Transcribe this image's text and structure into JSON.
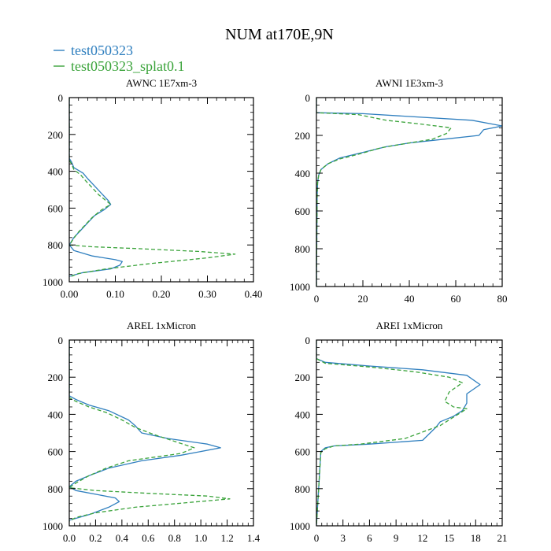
{
  "figure": {
    "title": "NUM at170E,9N",
    "legend": [
      {
        "label": "test050323",
        "color": "#2f7fbf",
        "dash": "solid"
      },
      {
        "label": "test050323_splat0.1",
        "color": "#3aa33a",
        "dash": "dashed"
      }
    ]
  },
  "chart_data": [
    {
      "type": "line",
      "title": "AWNC  1E7xm-3",
      "xlim": [
        0,
        0.4
      ],
      "ylim": [
        1000,
        0
      ],
      "xticks": [
        "0.00",
        "0.10",
        "0.20",
        "0.30",
        "0.40"
      ],
      "xtick_values": [
        0,
        0.1,
        0.2,
        0.3,
        0.4
      ],
      "yticks": [
        "0",
        "200",
        "400",
        "600",
        "800",
        "1000"
      ],
      "ytick_values": [
        0,
        200,
        400,
        600,
        800,
        1000
      ],
      "series": [
        {
          "name": "test050323",
          "x": [
            0,
            0,
            0.005,
            0.01,
            0.03,
            0.04,
            0.055,
            0.07,
            0.085,
            0.09,
            0.075,
            0.055,
            0.04,
            0.025,
            0.01,
            0.005,
            0,
            0.01,
            0.05,
            0.1,
            0.115,
            0.11,
            0.09,
            0.03,
            0
          ],
          "y": [
            0,
            330,
            350,
            380,
            410,
            440,
            480,
            520,
            560,
            580,
            610,
            640,
            680,
            720,
            760,
            780,
            800,
            830,
            860,
            880,
            890,
            910,
            930,
            950,
            970
          ]
        },
        {
          "name": "test050323_splat0.1",
          "x": [
            0,
            0,
            0.005,
            0.01,
            0.025,
            0.035,
            0.05,
            0.065,
            0.08,
            0.09,
            0.07,
            0.05,
            0.035,
            0.02,
            0.008,
            0.003,
            0,
            0.05,
            0.15,
            0.28,
            0.36,
            0.3,
            0.18,
            0.08,
            0.02,
            0
          ],
          "y": [
            0,
            340,
            360,
            390,
            420,
            450,
            490,
            530,
            560,
            580,
            610,
            650,
            690,
            730,
            770,
            790,
            800,
            810,
            820,
            835,
            850,
            870,
            900,
            930,
            955,
            975
          ]
        }
      ]
    },
    {
      "type": "line",
      "title": "AWNI  1E3xm-3",
      "xlim": [
        0,
        80
      ],
      "ylim": [
        1000,
        0
      ],
      "xticks": [
        "0",
        "20",
        "40",
        "60",
        "80"
      ],
      "xtick_values": [
        0,
        20,
        40,
        60,
        80
      ],
      "yticks": [
        "0",
        "200",
        "400",
        "600",
        "800",
        "1000"
      ],
      "ytick_values": [
        0,
        200,
        400,
        600,
        800,
        1000
      ],
      "series": [
        {
          "name": "test050323",
          "x": [
            0,
            0,
            20,
            67,
            80,
            72,
            70,
            55,
            40,
            30,
            20,
            10,
            5,
            2,
            1,
            0.5,
            0.3,
            0
          ],
          "y": [
            0,
            80,
            85,
            120,
            150,
            170,
            200,
            220,
            240,
            260,
            290,
            320,
            350,
            380,
            410,
            450,
            520,
            1000
          ]
        },
        {
          "name": "test050323_splat0.1",
          "x": [
            0,
            0,
            18,
            30,
            45,
            58,
            56,
            50,
            40,
            28,
            18,
            10,
            5,
            2,
            1,
            0.5,
            0.3,
            0
          ],
          "y": [
            0,
            80,
            90,
            120,
            140,
            160,
            190,
            220,
            240,
            265,
            300,
            325,
            350,
            380,
            410,
            450,
            520,
            1000
          ]
        }
      ]
    },
    {
      "type": "line",
      "title": "AREL  1xMicron",
      "xlim": [
        0,
        1.4
      ],
      "ylim": [
        1000,
        0
      ],
      "xticks": [
        "0.0",
        "0.2",
        "0.4",
        "0.6",
        "0.8",
        "1.0",
        "1.2",
        "1.4"
      ],
      "xtick_values": [
        0,
        0.2,
        0.4,
        0.6,
        0.8,
        1.0,
        1.2,
        1.4
      ],
      "yticks": [
        "0",
        "200",
        "400",
        "600",
        "800",
        "1000"
      ],
      "ytick_values": [
        0,
        200,
        400,
        600,
        800,
        1000
      ],
      "series": [
        {
          "name": "test050323",
          "x": [
            0,
            0,
            0.05,
            0.15,
            0.3,
            0.45,
            0.5,
            0.55,
            0.75,
            1.05,
            1.15,
            0.85,
            0.55,
            0.3,
            0.15,
            0.05,
            0,
            0.05,
            0.2,
            0.35,
            0.38,
            0.3,
            0.15,
            0
          ],
          "y": [
            0,
            300,
            320,
            350,
            380,
            430,
            460,
            500,
            530,
            560,
            580,
            620,
            650,
            690,
            730,
            760,
            790,
            810,
            830,
            850,
            870,
            900,
            940,
            970
          ]
        },
        {
          "name": "test050323_splat0.1",
          "x": [
            0,
            0,
            0.05,
            0.15,
            0.28,
            0.4,
            0.5,
            0.65,
            0.82,
            0.95,
            0.85,
            0.45,
            0.28,
            0.15,
            0.05,
            0,
            0.2,
            0.6,
            1.05,
            1.22,
            0.9,
            0.5,
            0.2,
            0.05,
            0
          ],
          "y": [
            0,
            310,
            330,
            360,
            390,
            430,
            470,
            510,
            550,
            580,
            610,
            650,
            690,
            730,
            770,
            795,
            810,
            825,
            840,
            855,
            875,
            900,
            930,
            955,
            975
          ]
        }
      ]
    },
    {
      "type": "line",
      "title": "AREI  1xMicron",
      "xlim": [
        0,
        21
      ],
      "ylim": [
        1000,
        0
      ],
      "xticks": [
        "0",
        "3",
        "6",
        "9",
        "12",
        "15",
        "18",
        "21"
      ],
      "xtick_values": [
        0,
        3,
        6,
        9,
        12,
        15,
        18,
        21
      ],
      "yticks": [
        "0",
        "200",
        "400",
        "600",
        "800",
        "1000"
      ],
      "ytick_values": [
        0,
        200,
        400,
        600,
        800,
        1000
      ],
      "series": [
        {
          "name": "test050323",
          "x": [
            0,
            0,
            1,
            6,
            12,
            17,
            18.5,
            17,
            17,
            16.5,
            15.5,
            14,
            13.5,
            12,
            6,
            2,
            1,
            0.5,
            0
          ],
          "y": [
            0,
            100,
            120,
            140,
            160,
            190,
            240,
            290,
            340,
            380,
            410,
            440,
            470,
            540,
            560,
            570,
            580,
            600,
            1000
          ]
        },
        {
          "name": "test050323_splat0.1",
          "x": [
            0,
            0,
            1,
            6,
            11,
            15,
            16.5,
            15,
            14.5,
            15.5,
            17,
            16,
            14,
            10,
            5,
            2,
            1,
            0.5,
            0
          ],
          "y": [
            0,
            100,
            125,
            145,
            170,
            200,
            230,
            280,
            330,
            360,
            370,
            400,
            460,
            530,
            560,
            570,
            585,
            605,
            1000
          ]
        }
      ]
    }
  ]
}
